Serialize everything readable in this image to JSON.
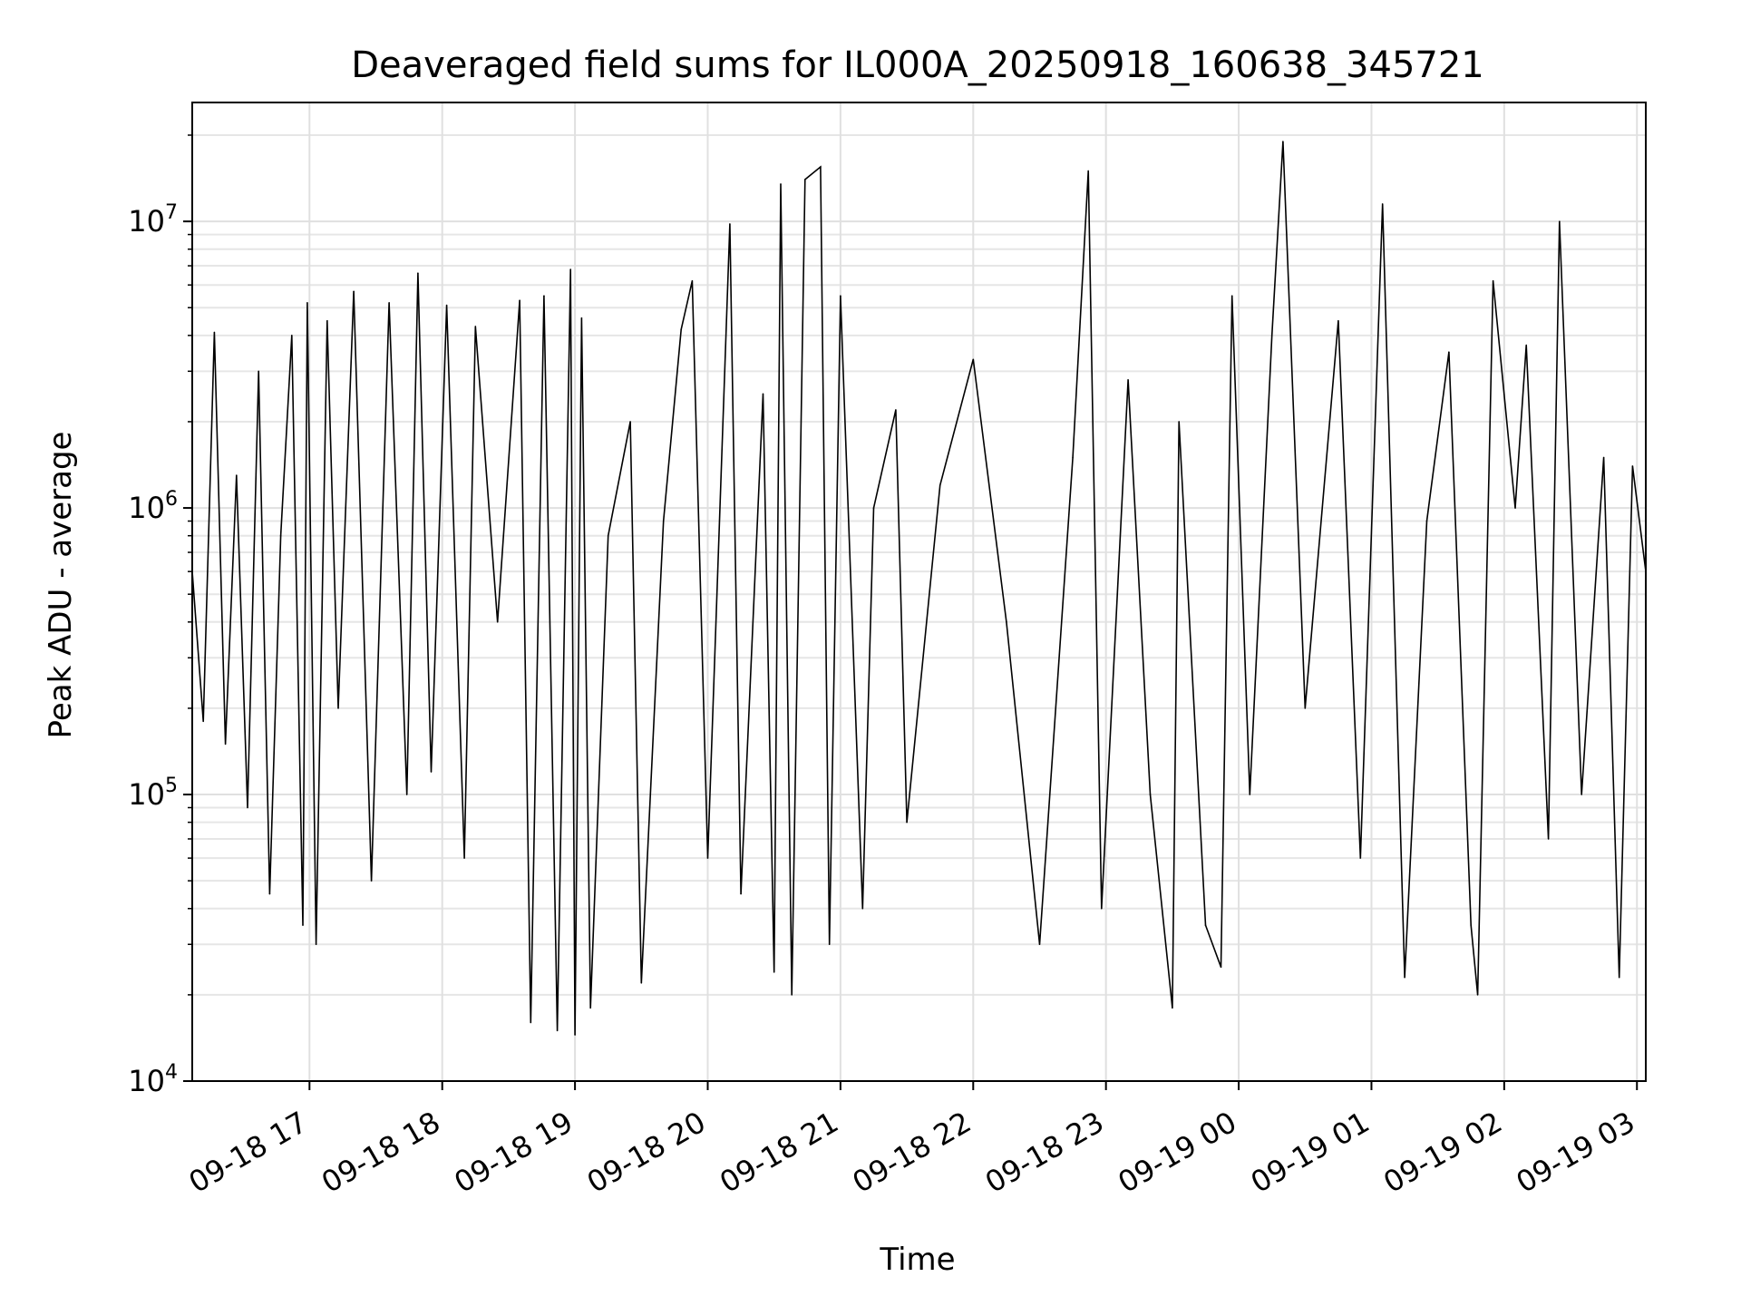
{
  "chart_data": {
    "type": "line",
    "title": "Deaveraged field sums for IL000A_20250918_160638_345721",
    "xlabel": "Time",
    "ylabel": "Peak ADU - average",
    "yscale": "log",
    "ylim": [
      10000,
      26000000
    ],
    "xlim": [
      "2025-09-18 16:07",
      "2025-09-19 03:04"
    ],
    "grid": true,
    "y_ticks": [
      {
        "base": "10",
        "exp": "4",
        "value": 10000
      },
      {
        "base": "10",
        "exp": "5",
        "value": 100000
      },
      {
        "base": "10",
        "exp": "6",
        "value": 1000000
      },
      {
        "base": "10",
        "exp": "7",
        "value": 10000000
      }
    ],
    "x_ticks": [
      {
        "label": "09-18 17",
        "time": "2025-09-18 17:00"
      },
      {
        "label": "09-18 18",
        "time": "2025-09-18 18:00"
      },
      {
        "label": "09-18 19",
        "time": "2025-09-18 19:00"
      },
      {
        "label": "09-18 20",
        "time": "2025-09-18 20:00"
      },
      {
        "label": "09-18 21",
        "time": "2025-09-18 21:00"
      },
      {
        "label": "09-18 22",
        "time": "2025-09-18 22:00"
      },
      {
        "label": "09-18 23",
        "time": "2025-09-18 23:00"
      },
      {
        "label": "09-19 00",
        "time": "2025-09-19 00:00"
      },
      {
        "label": "09-19 01",
        "time": "2025-09-19 01:00"
      },
      {
        "label": "09-19 02",
        "time": "2025-09-19 02:00"
      },
      {
        "label": "09-19 03",
        "time": "2025-09-19 03:00"
      }
    ],
    "series": [
      {
        "color": "#000000",
        "points": [
          [
            "2025-09-18 16:07",
            600000
          ],
          [
            "2025-09-18 16:12",
            180000
          ],
          [
            "2025-09-18 16:17",
            4100000
          ],
          [
            "2025-09-18 16:22",
            150000
          ],
          [
            "2025-09-18 16:27",
            1300000
          ],
          [
            "2025-09-18 16:32",
            90000
          ],
          [
            "2025-09-18 16:37",
            3000000
          ],
          [
            "2025-09-18 16:42",
            45000
          ],
          [
            "2025-09-18 16:47",
            800000
          ],
          [
            "2025-09-18 16:52",
            4000000
          ],
          [
            "2025-09-18 16:57",
            35000
          ],
          [
            "2025-09-18 16:59",
            5200000
          ],
          [
            "2025-09-18 17:03",
            30000
          ],
          [
            "2025-09-18 17:08",
            4500000
          ],
          [
            "2025-09-18 17:13",
            200000
          ],
          [
            "2025-09-18 17:20",
            5700000
          ],
          [
            "2025-09-18 17:28",
            50000
          ],
          [
            "2025-09-18 17:36",
            5200000
          ],
          [
            "2025-09-18 17:44",
            100000
          ],
          [
            "2025-09-18 17:49",
            6600000
          ],
          [
            "2025-09-18 17:55",
            120000
          ],
          [
            "2025-09-18 18:02",
            5100000
          ],
          [
            "2025-09-18 18:10",
            60000
          ],
          [
            "2025-09-18 18:15",
            4300000
          ],
          [
            "2025-09-18 18:25",
            400000
          ],
          [
            "2025-09-18 18:35",
            5300000
          ],
          [
            "2025-09-18 18:40",
            16000
          ],
          [
            "2025-09-18 18:46",
            5500000
          ],
          [
            "2025-09-18 18:52",
            15000
          ],
          [
            "2025-09-18 18:58",
            6800000
          ],
          [
            "2025-09-18 19:00",
            14500
          ],
          [
            "2025-09-18 19:03",
            4600000
          ],
          [
            "2025-09-18 19:07",
            18000
          ],
          [
            "2025-09-18 19:15",
            800000
          ],
          [
            "2025-09-18 19:25",
            2000000
          ],
          [
            "2025-09-18 19:30",
            22000
          ],
          [
            "2025-09-18 19:40",
            900000
          ],
          [
            "2025-09-18 19:48",
            4200000
          ],
          [
            "2025-09-18 19:53",
            6200000
          ],
          [
            "2025-09-18 20:00",
            60000
          ],
          [
            "2025-09-18 20:10",
            9800000
          ],
          [
            "2025-09-18 20:15",
            45000
          ],
          [
            "2025-09-18 20:25",
            2500000
          ],
          [
            "2025-09-18 20:30",
            24000
          ],
          [
            "2025-09-18 20:33",
            13500000
          ],
          [
            "2025-09-18 20:38",
            20000
          ],
          [
            "2025-09-18 20:44",
            14000000
          ],
          [
            "2025-09-18 20:51",
            15500000
          ],
          [
            "2025-09-18 20:55",
            30000
          ],
          [
            "2025-09-18 21:00",
            5500000
          ],
          [
            "2025-09-18 21:10",
            40000
          ],
          [
            "2025-09-18 21:15",
            1000000
          ],
          [
            "2025-09-18 21:25",
            2200000
          ],
          [
            "2025-09-18 21:30",
            80000
          ],
          [
            "2025-09-18 21:45",
            1200000
          ],
          [
            "2025-09-18 22:00",
            3300000
          ],
          [
            "2025-09-18 22:15",
            400000
          ],
          [
            "2025-09-18 22:30",
            30000
          ],
          [
            "2025-09-18 22:45",
            1500000
          ],
          [
            "2025-09-18 22:52",
            15000000
          ],
          [
            "2025-09-18 22:58",
            40000
          ],
          [
            "2025-09-18 23:10",
            2800000
          ],
          [
            "2025-09-18 23:20",
            100000
          ],
          [
            "2025-09-18 23:30",
            18000
          ],
          [
            "2025-09-18 23:33",
            2000000
          ],
          [
            "2025-09-18 23:45",
            35000
          ],
          [
            "2025-09-18 23:52",
            25000
          ],
          [
            "2025-09-18 23:57",
            5500000
          ],
          [
            "2025-09-19 00:05",
            100000
          ],
          [
            "2025-09-19 00:15",
            4000000
          ],
          [
            "2025-09-19 00:20",
            19000000
          ],
          [
            "2025-09-19 00:30",
            200000
          ],
          [
            "2025-09-19 00:45",
            4500000
          ],
          [
            "2025-09-19 00:55",
            60000
          ],
          [
            "2025-09-19 01:05",
            11500000
          ],
          [
            "2025-09-19 01:15",
            23000
          ],
          [
            "2025-09-19 01:25",
            900000
          ],
          [
            "2025-09-19 01:35",
            3500000
          ],
          [
            "2025-09-19 01:45",
            35000
          ],
          [
            "2025-09-19 01:48",
            20000
          ],
          [
            "2025-09-19 01:55",
            6200000
          ],
          [
            "2025-09-19 02:05",
            1000000
          ],
          [
            "2025-09-19 02:10",
            3700000
          ],
          [
            "2025-09-19 02:20",
            70000
          ],
          [
            "2025-09-19 02:25",
            10000000
          ],
          [
            "2025-09-19 02:35",
            100000
          ],
          [
            "2025-09-19 02:45",
            1500000
          ],
          [
            "2025-09-19 02:52",
            23000
          ],
          [
            "2025-09-19 02:58",
            1400000
          ],
          [
            "2025-09-19 03:04",
            600000
          ]
        ]
      }
    ]
  }
}
